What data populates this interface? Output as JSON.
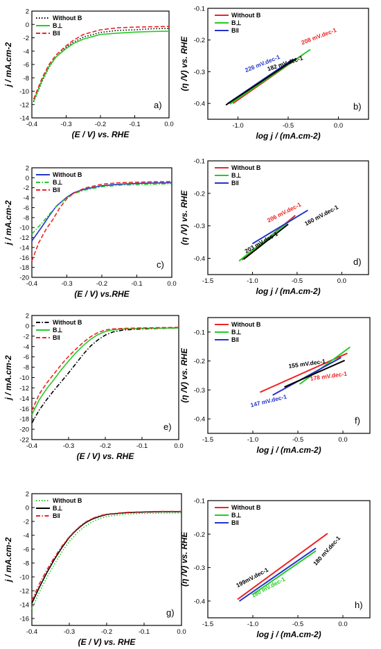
{
  "chart_data": [
    {
      "id": "a",
      "type": "line",
      "panel_label": "a)",
      "xlabel": "(E / V) vs. RHE",
      "ylabel": "j / mA.cm-2",
      "xlim": [
        -0.4,
        0.0
      ],
      "ylim": [
        -14,
        2
      ],
      "xticks": [
        "-0.4",
        "-0.3",
        "-0.2",
        "-0.1",
        "0.0"
      ],
      "yticks": [
        "2",
        "0",
        "-2",
        "-4",
        "-6",
        "-8",
        "-10",
        "-12",
        "-14"
      ],
      "legend": "top-left",
      "series": [
        {
          "name": "Without B",
          "color": "#000000",
          "dash": "dot",
          "x": [
            -0.395,
            -0.37,
            -0.35,
            -0.33,
            -0.3,
            -0.28,
            -0.25,
            -0.2,
            -0.15,
            -0.1,
            -0.05,
            0.0
          ],
          "y": [
            -11.6,
            -8.5,
            -6.4,
            -4.9,
            -3.4,
            -2.7,
            -1.9,
            -1.2,
            -0.9,
            -0.8,
            -0.65,
            -0.6
          ]
        },
        {
          "name": "B⊥",
          "color": "#22cc22",
          "dash": "solid",
          "x": [
            -0.395,
            -0.37,
            -0.35,
            -0.33,
            -0.3,
            -0.28,
            -0.25,
            -0.2,
            -0.15,
            -0.1,
            -0.05,
            0.0
          ],
          "y": [
            -11.5,
            -8.3,
            -6.3,
            -4.9,
            -3.6,
            -2.9,
            -2.2,
            -1.5,
            -1.3,
            -1.15,
            -1.05,
            -1.0
          ]
        },
        {
          "name": "B‖",
          "color": "#ee2222",
          "dash": "dash",
          "x": [
            -0.395,
            -0.37,
            -0.35,
            -0.33,
            -0.3,
            -0.28,
            -0.25,
            -0.2,
            -0.15,
            -0.1,
            -0.05,
            0.0
          ],
          "y": [
            -11.2,
            -8.0,
            -6.0,
            -4.6,
            -3.2,
            -2.4,
            -1.5,
            -0.8,
            -0.5,
            -0.4,
            -0.35,
            -0.3
          ]
        }
      ]
    },
    {
      "id": "b",
      "type": "line",
      "panel_label": "b)",
      "xlabel": "log j / (mA.cm-2)",
      "ylabel": "(η /V) vs. RHE",
      "xlim": [
        -1.3,
        0.3
      ],
      "ylim": [
        -0.45,
        -0.1
      ],
      "xticks": [
        "-1.0",
        "-0.5",
        "0.0"
      ],
      "yticks": [
        "-0.1",
        "-0.2",
        "-0.3",
        "-0.4"
      ],
      "legend": "top-left",
      "series": [
        {
          "name": "Without B",
          "color": "#ee2222",
          "x": [
            -1.05,
            -0.35
          ],
          "y": [
            -0.4,
            -0.245
          ]
        },
        {
          "name": "B⊥",
          "color": "#22cc22",
          "x": [
            -1.08,
            -0.28
          ],
          "y": [
            -0.402,
            -0.23
          ]
        },
        {
          "name": "B‖",
          "color": "#2233cc",
          "x": [
            -1.1,
            -0.45
          ],
          "y": [
            -0.4,
            -0.26
          ]
        },
        {
          "name": "",
          "color": "#000000",
          "x": [
            -1.12,
            -0.42
          ],
          "y": [
            -0.405,
            -0.258
          ]
        }
      ],
      "annotations": [
        {
          "text": "208 mV.dec-1",
          "color": "#ee2222",
          "x": -0.36,
          "y": -0.215,
          "rotate": -21
        },
        {
          "text": "226 mV.dec-1",
          "color": "#2233cc",
          "x": -0.92,
          "y": -0.302,
          "rotate": -22
        },
        {
          "text": "182 mV.dec-1",
          "color": "#000000",
          "x": -0.7,
          "y": -0.298,
          "rotate": -18
        }
      ]
    },
    {
      "id": "c",
      "type": "line",
      "panel_label": "c)",
      "xlabel": "(E / V) vs.RHE",
      "ylabel": "j / mA.cm-2",
      "xlim": [
        -0.4,
        0.0
      ],
      "ylim": [
        -20,
        2
      ],
      "xticks": [
        "-0.4",
        "-0.3",
        "-0.2",
        "-0.1",
        "0.0"
      ],
      "yticks": [
        "2",
        "0",
        "-2",
        "-4",
        "-6",
        "-8",
        "-10",
        "-12",
        "-14",
        "-16",
        "-18",
        "-20"
      ],
      "legend": "top-left",
      "series": [
        {
          "name": "Without B",
          "color": "#2233cc",
          "dash": "solid",
          "x": [
            -0.4,
            -0.37,
            -0.35,
            -0.33,
            -0.3,
            -0.28,
            -0.25,
            -0.2,
            -0.15,
            -0.1,
            -0.05,
            0.0
          ],
          "y": [
            -12.7,
            -9.7,
            -7.6,
            -5.7,
            -3.9,
            -3.0,
            -2.3,
            -1.6,
            -1.3,
            -1.15,
            -1.05,
            -1.0
          ]
        },
        {
          "name": "B⊥",
          "color": "#22cc22",
          "dash": "dashdot",
          "x": [
            -0.4,
            -0.37,
            -0.35,
            -0.33,
            -0.3,
            -0.28,
            -0.25,
            -0.2,
            -0.15,
            -0.1,
            -0.05,
            0.0
          ],
          "y": [
            -11.3,
            -9.0,
            -7.3,
            -5.8,
            -4.0,
            -3.2,
            -2.5,
            -1.8,
            -1.5,
            -1.4,
            -1.3,
            -1.2
          ]
        },
        {
          "name": "B‖",
          "color": "#ee2222",
          "dash": "dash",
          "x": [
            -0.4,
            -0.38,
            -0.36,
            -0.34,
            -0.32,
            -0.3,
            -0.28,
            -0.25,
            -0.2,
            -0.15,
            -0.1,
            -0.05,
            0.0
          ],
          "y": [
            -16.7,
            -13.0,
            -10.4,
            -8.4,
            -6.0,
            -4.2,
            -3.1,
            -2.1,
            -1.3,
            -1.0,
            -0.9,
            -0.8,
            -0.75
          ]
        }
      ]
    },
    {
      "id": "d",
      "type": "line",
      "panel_label": "d)",
      "xlabel": "log j / (mA.cm-2)",
      "ylabel": "(η /V) vs. RHE",
      "xlim": [
        -1.5,
        0.3
      ],
      "ylim": [
        -0.45,
        -0.1
      ],
      "xticks": [
        "-1.5",
        "-1.0",
        "-0.5",
        "0.0"
      ],
      "yticks": [
        "-0.1",
        "-0.2",
        "-0.3",
        "-0.4"
      ],
      "legend": "top-left",
      "series": [
        {
          "name": "Without B",
          "color": "#ee2222",
          "x": [
            -1.12,
            -0.52
          ],
          "y": [
            -0.405,
            -0.268
          ]
        },
        {
          "name": "B⊥",
          "color": "#22cc22",
          "x": [
            -1.15,
            -0.55
          ],
          "y": [
            -0.408,
            -0.278
          ]
        },
        {
          "name": "B‖",
          "color": "#2233cc",
          "x": [
            -1.0,
            -0.38
          ],
          "y": [
            -0.355,
            -0.252
          ]
        },
        {
          "name": "",
          "color": "#000000",
          "x": [
            -1.1,
            -0.6
          ],
          "y": [
            -0.403,
            -0.295
          ]
        }
      ],
      "annotations": [
        {
          "text": "206 mV.dec-1",
          "color": "#ee2222",
          "x": -0.82,
          "y": -0.29,
          "rotate": -27
        },
        {
          "text": "160 mV.dec-1",
          "color": "#000000",
          "x": -0.4,
          "y": -0.3,
          "rotate": -28
        },
        {
          "text": "203 mV.dec-1",
          "color": "#000000",
          "x": -1.07,
          "y": -0.385,
          "rotate": -30
        }
      ]
    },
    {
      "id": "e",
      "type": "line",
      "panel_label": "e)",
      "xlabel": "(E / V) vs. RHE",
      "ylabel": "j / mA.cm-2",
      "xlim": [
        -0.4,
        0.0
      ],
      "ylim": [
        -22,
        2
      ],
      "xticks": [
        "-0.4",
        "-0.3",
        "-0.2",
        "-0.1",
        "0.0"
      ],
      "yticks": [
        "2",
        "0",
        "-2",
        "-4",
        "-6",
        "-8",
        "-10",
        "-12",
        "-14",
        "-16",
        "-18",
        "-20",
        "-22"
      ],
      "legend": "top-left",
      "series": [
        {
          "name": "Without B",
          "color": "#000000",
          "dash": "dashdot",
          "x": [
            -0.4,
            -0.38,
            -0.36,
            -0.34,
            -0.32,
            -0.3,
            -0.28,
            -0.26,
            -0.24,
            -0.22,
            -0.2,
            -0.18,
            -0.15,
            -0.1,
            -0.05,
            0.0
          ],
          "y": [
            -18.8,
            -16.3,
            -14.3,
            -12.5,
            -10.8,
            -9.1,
            -7.3,
            -5.5,
            -3.9,
            -2.7,
            -1.8,
            -1.2,
            -0.8,
            -0.6,
            -0.5,
            -0.4
          ]
        },
        {
          "name": "B⊥",
          "color": "#22cc22",
          "dash": "solid",
          "x": [
            -0.4,
            -0.38,
            -0.36,
            -0.34,
            -0.32,
            -0.3,
            -0.28,
            -0.26,
            -0.24,
            -0.22,
            -0.2,
            -0.18,
            -0.15,
            -0.1,
            -0.05,
            0.0
          ],
          "y": [
            -17.2,
            -14.3,
            -12.2,
            -10.4,
            -8.5,
            -6.8,
            -5.2,
            -3.8,
            -2.6,
            -1.7,
            -1.1,
            -0.8,
            -0.6,
            -0.5,
            -0.45,
            -0.4
          ]
        },
        {
          "name": "B‖",
          "color": "#ee2222",
          "dash": "dash",
          "x": [
            -0.4,
            -0.38,
            -0.36,
            -0.34,
            -0.32,
            -0.3,
            -0.28,
            -0.26,
            -0.24,
            -0.22,
            -0.2,
            -0.18,
            -0.15,
            -0.1,
            -0.05,
            0.0
          ],
          "y": [
            -16.4,
            -13.2,
            -11.1,
            -9.3,
            -7.5,
            -5.9,
            -4.5,
            -3.2,
            -2.1,
            -1.3,
            -0.8,
            -0.6,
            -0.5,
            -0.4,
            -0.35,
            -0.3
          ]
        }
      ]
    },
    {
      "id": "f",
      "type": "line",
      "panel_label": "f)",
      "xlabel": "log j / (mA.cm-2)",
      "ylabel": "(η /V) vs. RHE",
      "xlim": [
        -1.5,
        0.3
      ],
      "ylim": [
        -0.45,
        -0.05
      ],
      "xticks": [
        "-1.5",
        "-1.0",
        "-0.5",
        "0.0"
      ],
      "yticks": [
        "-0.1",
        "-0.2",
        "-0.3",
        "-0.4"
      ],
      "legend": "top-left",
      "series": [
        {
          "name": "Without B",
          "color": "#ee2222",
          "x": [
            -0.92,
            0.05
          ],
          "y": [
            -0.308,
            -0.173
          ]
        },
        {
          "name": "B⊥",
          "color": "#22cc22",
          "x": [
            -0.48,
            0.08
          ],
          "y": [
            -0.28,
            -0.152
          ]
        },
        {
          "name": "B‖",
          "color": "#2233cc",
          "x": [
            -0.78,
            -0.02
          ],
          "y": [
            -0.318,
            -0.188
          ]
        },
        {
          "name": "",
          "color": "#000000",
          "x": [
            -0.65,
            0.02
          ],
          "y": [
            -0.29,
            -0.198
          ]
        }
      ],
      "annotations": [
        {
          "text": "155 mV.dec-1",
          "color": "#000000",
          "x": -0.6,
          "y": -0.225,
          "rotate": -8
        },
        {
          "text": "147 mV.dec-1",
          "color": "#2233cc",
          "x": -1.02,
          "y": -0.36,
          "rotate": -14
        },
        {
          "text": "178 mV.dec-1",
          "color": "#ee2222",
          "x": -0.36,
          "y": -0.268,
          "rotate": -8
        }
      ]
    },
    {
      "id": "g",
      "type": "line",
      "panel_label": "g)",
      "xlabel": "(E / V) vs. RHE",
      "ylabel": "j / mA.cm-2",
      "xlim": [
        -0.4,
        0.0
      ],
      "ylim": [
        -17,
        2
      ],
      "xticks": [
        "-0.4",
        "-0.3",
        "-0.2",
        "-0.1",
        "0.0"
      ],
      "yticks": [
        "2",
        "0",
        "-2",
        "-4",
        "-6",
        "-8",
        "-10",
        "-12",
        "-14",
        "-16"
      ],
      "legend": "top-left",
      "series": [
        {
          "name": "Without B",
          "color": "#22cc22",
          "dash": "dot",
          "x": [
            -0.4,
            -0.38,
            -0.36,
            -0.34,
            -0.32,
            -0.3,
            -0.28,
            -0.26,
            -0.24,
            -0.22,
            -0.2,
            -0.15,
            -0.1,
            -0.05,
            0.0
          ],
          "y": [
            -14.6,
            -12.2,
            -10.1,
            -8.2,
            -6.4,
            -4.9,
            -3.7,
            -2.8,
            -2.1,
            -1.6,
            -1.3,
            -0.95,
            -0.85,
            -0.8,
            -0.8
          ]
        },
        {
          "name": "B⊥",
          "color": "#000000",
          "dash": "solid",
          "x": [
            -0.4,
            -0.38,
            -0.36,
            -0.34,
            -0.32,
            -0.3,
            -0.28,
            -0.26,
            -0.24,
            -0.22,
            -0.2,
            -0.15,
            -0.1,
            -0.05,
            0.0
          ],
          "y": [
            -13.8,
            -11.5,
            -9.4,
            -7.5,
            -5.8,
            -4.3,
            -3.2,
            -2.3,
            -1.7,
            -1.3,
            -1.0,
            -0.75,
            -0.65,
            -0.6,
            -0.6
          ]
        },
        {
          "name": "B‖",
          "color": "#ee2222",
          "dash": "dashdot",
          "x": [
            -0.4,
            -0.38,
            -0.36,
            -0.34,
            -0.32,
            -0.3,
            -0.28,
            -0.26,
            -0.24,
            -0.22,
            -0.2,
            -0.15,
            -0.1,
            -0.05,
            0.0
          ],
          "y": [
            -13.4,
            -11.0,
            -9.0,
            -7.2,
            -5.6,
            -4.2,
            -3.1,
            -2.2,
            -1.6,
            -1.2,
            -0.95,
            -0.7,
            -0.6,
            -0.55,
            -0.55
          ]
        }
      ]
    },
    {
      "id": "h",
      "type": "line",
      "panel_label": "h)",
      "xlabel": "log j / (mA.cm-2)",
      "ylabel": "(η /V) vs. RHE",
      "xlim": [
        -1.5,
        0.3
      ],
      "ylim": [
        -0.45,
        -0.1
      ],
      "xticks": [
        "-1.5",
        "-1.0",
        "-0.5",
        "0.0"
      ],
      "yticks": [
        "-0.1",
        "-0.2",
        "-0.3",
        "-0.4"
      ],
      "legend": "top-left",
      "series": [
        {
          "name": "Without B",
          "color": "#ee2222",
          "x": [
            -1.17,
            -0.17
          ],
          "y": [
            -0.395,
            -0.198
          ]
        },
        {
          "name": "B⊥",
          "color": "#22cc22",
          "x": [
            -1.0,
            -0.3
          ],
          "y": [
            -0.38,
            -0.25
          ]
        },
        {
          "name": "B‖",
          "color": "#2233cc",
          "x": [
            -1.15,
            -0.3
          ],
          "y": [
            -0.4,
            -0.242
          ]
        }
      ],
      "annotations": [
        {
          "text": "199mV.dec-1",
          "color": "#000000",
          "x": -1.17,
          "y": -0.36,
          "rotate": -28
        },
        {
          "text": "180 mV.dec-1",
          "color": "#22cc22",
          "x": -1.0,
          "y": -0.39,
          "rotate": -28
        },
        {
          "text": "180 mV.dec-1",
          "color": "#000000",
          "x": -0.3,
          "y": -0.295,
          "rotate": -48
        }
      ]
    }
  ]
}
